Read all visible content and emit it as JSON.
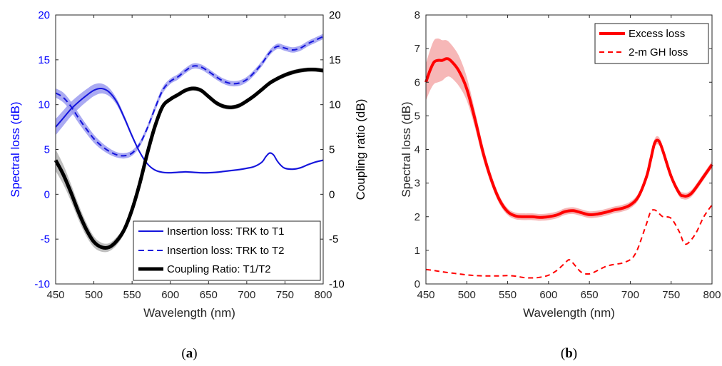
{
  "chart_data": [
    {
      "panel": "a",
      "caption": "(a)",
      "type": "line",
      "xlabel": "Wavelength (nm)",
      "ylabel_left": "Spectral loss (dB)",
      "ylabel_right": "Coupling ratio (dB)",
      "xlim": [
        450,
        800
      ],
      "ylim_left": [
        -10,
        20
      ],
      "ylim_right": [
        -10,
        20
      ],
      "xticks": [
        450,
        500,
        550,
        600,
        650,
        700,
        750,
        800
      ],
      "yticks_left": [
        -10,
        -5,
        0,
        5,
        10,
        15,
        20
      ],
      "yticks_right": [
        -10,
        -5,
        0,
        5,
        10,
        15,
        20
      ],
      "grid": false,
      "legend": "bottom-right",
      "colors": {
        "left_axis": "#0000ff",
        "right_axis": "#000000"
      },
      "series": [
        {
          "name": "Insertion loss: TRK to T1",
          "axis": "left",
          "style": "solid",
          "color": "#1414dc",
          "band_color": "#9b9bf0",
          "x": [
            450,
            460,
            470,
            480,
            490,
            500,
            510,
            520,
            530,
            540,
            550,
            560,
            570,
            580,
            590,
            600,
            610,
            620,
            630,
            640,
            650,
            660,
            670,
            680,
            690,
            700,
            710,
            720,
            725,
            730,
            735,
            740,
            745,
            750,
            760,
            770,
            780,
            790,
            800
          ],
          "y": [
            7.5,
            8.5,
            9.5,
            10.3,
            11,
            11.6,
            11.8,
            11.4,
            10.3,
            8.5,
            6.5,
            4.7,
            3.4,
            2.7,
            2.45,
            2.4,
            2.45,
            2.5,
            2.45,
            2.4,
            2.4,
            2.45,
            2.55,
            2.65,
            2.75,
            2.9,
            3.1,
            3.6,
            4.2,
            4.6,
            4.4,
            3.7,
            3.2,
            2.9,
            2.8,
            2.95,
            3.3,
            3.6,
            3.8
          ],
          "band": [
            0.9,
            0.85,
            0.8,
            0.75,
            0.7,
            0.65,
            0.55,
            0.45,
            0.35,
            0.3,
            0.25,
            0.15,
            0.12,
            0.1,
            0.1,
            0.1,
            0.1,
            0.1,
            0.1,
            0.1,
            0.1,
            0.1,
            0.1,
            0.1,
            0.1,
            0.1,
            0.1,
            0.1,
            0.1,
            0.1,
            0.1,
            0.1,
            0.1,
            0.1,
            0.1,
            0.1,
            0.1,
            0.1,
            0.1
          ]
        },
        {
          "name": "Insertion loss: TRK to T2",
          "axis": "left",
          "style": "dashed",
          "color": "#1414dc",
          "band_color": "#9b9bf0",
          "x": [
            450,
            460,
            470,
            480,
            490,
            500,
            510,
            520,
            530,
            540,
            550,
            560,
            570,
            580,
            590,
            600,
            610,
            620,
            630,
            640,
            650,
            660,
            670,
            680,
            690,
            700,
            710,
            720,
            730,
            740,
            750,
            760,
            770,
            780,
            790,
            800
          ],
          "y": [
            11.3,
            10.8,
            9.8,
            8.5,
            7.3,
            6.2,
            5.4,
            4.8,
            4.4,
            4.3,
            4.6,
            5.6,
            7.4,
            9.6,
            11.6,
            12.6,
            13.1,
            13.8,
            14.3,
            14.2,
            13.7,
            13.1,
            12.6,
            12.35,
            12.4,
            12.8,
            13.6,
            14.6,
            15.8,
            16.5,
            16.3,
            16.1,
            16.3,
            16.8,
            17.2,
            17.6
          ],
          "band": [
            0.5,
            0.55,
            0.55,
            0.55,
            0.5,
            0.45,
            0.4,
            0.35,
            0.3,
            0.3,
            0.3,
            0.3,
            0.3,
            0.35,
            0.35,
            0.3,
            0.3,
            0.3,
            0.3,
            0.3,
            0.3,
            0.3,
            0.3,
            0.3,
            0.3,
            0.3,
            0.3,
            0.3,
            0.3,
            0.3,
            0.3,
            0.3,
            0.3,
            0.3,
            0.3,
            0.3
          ]
        },
        {
          "name": "Coupling Ratio: T1/T2",
          "axis": "right",
          "style": "solid-thick",
          "color": "#000000",
          "band_color": "#b4b4b4",
          "x": [
            450,
            460,
            470,
            480,
            490,
            500,
            510,
            520,
            530,
            540,
            550,
            560,
            570,
            580,
            590,
            600,
            610,
            620,
            630,
            640,
            650,
            660,
            670,
            680,
            690,
            700,
            710,
            720,
            730,
            740,
            750,
            760,
            770,
            780,
            790,
            800
          ],
          "y": [
            3.8,
            2.2,
            0.2,
            -2,
            -3.9,
            -5.3,
            -5.9,
            -5.9,
            -5.2,
            -3.9,
            -1.7,
            1.2,
            4.6,
            7.6,
            9.8,
            10.6,
            11.1,
            11.6,
            11.8,
            11.6,
            10.9,
            10.2,
            9.8,
            9.7,
            9.9,
            10.4,
            11.0,
            11.7,
            12.4,
            12.9,
            13.3,
            13.6,
            13.8,
            13.9,
            13.9,
            13.8
          ],
          "band": [
            1.2,
            1.1,
            0.95,
            0.85,
            0.75,
            0.6,
            0.5,
            0.45,
            0.45,
            0.4,
            0.35,
            0.3,
            0.3,
            0.25,
            0.25,
            0.25,
            0.25,
            0.25,
            0.25,
            0.25,
            0.25,
            0.25,
            0.25,
            0.25,
            0.25,
            0.25,
            0.25,
            0.25,
            0.25,
            0.25,
            0.25,
            0.25,
            0.25,
            0.25,
            0.25,
            0.25
          ]
        }
      ]
    },
    {
      "panel": "b",
      "caption": "(b)",
      "type": "line",
      "xlabel": "Wavelength (nm)",
      "ylabel": "Spectral loss (dB)",
      "xlim": [
        450,
        800
      ],
      "ylim": [
        0,
        8
      ],
      "xticks": [
        450,
        500,
        550,
        600,
        650,
        700,
        750,
        800
      ],
      "yticks": [
        0,
        1,
        2,
        3,
        4,
        5,
        6,
        7,
        8
      ],
      "grid": false,
      "legend": "top-right",
      "series": [
        {
          "name": "Excess loss",
          "style": "solid-thick",
          "color": "#ff0000",
          "band_color": "#f5aaaa",
          "x": [
            450,
            455,
            460,
            465,
            470,
            475,
            480,
            490,
            500,
            510,
            520,
            530,
            540,
            550,
            560,
            570,
            580,
            590,
            600,
            610,
            620,
            630,
            640,
            650,
            660,
            670,
            680,
            690,
            700,
            710,
            720,
            725,
            730,
            735,
            740,
            750,
            760,
            765,
            770,
            775,
            780,
            790,
            800
          ],
          "y": [
            6.0,
            6.35,
            6.6,
            6.65,
            6.65,
            6.7,
            6.65,
            6.35,
            5.8,
            4.9,
            3.9,
            3.1,
            2.5,
            2.15,
            2.02,
            2.0,
            2.0,
            1.98,
            2.0,
            2.05,
            2.15,
            2.18,
            2.12,
            2.06,
            2.08,
            2.13,
            2.2,
            2.25,
            2.35,
            2.6,
            3.2,
            3.7,
            4.2,
            4.25,
            3.95,
            3.2,
            2.7,
            2.62,
            2.62,
            2.7,
            2.85,
            3.2,
            3.55
          ],
          "band": [
            0.55,
            0.6,
            0.65,
            0.65,
            0.6,
            0.55,
            0.5,
            0.45,
            0.35,
            0.25,
            0.2,
            0.15,
            0.12,
            0.1,
            0.1,
            0.1,
            0.1,
            0.1,
            0.1,
            0.1,
            0.1,
            0.1,
            0.1,
            0.1,
            0.1,
            0.1,
            0.1,
            0.1,
            0.1,
            0.1,
            0.1,
            0.1,
            0.12,
            0.12,
            0.12,
            0.1,
            0.1,
            0.1,
            0.1,
            0.1,
            0.1,
            0.1,
            0.1
          ]
        },
        {
          "name": "2-m GH loss",
          "style": "dashed",
          "color": "#ff0000",
          "x": [
            450,
            460,
            470,
            480,
            490,
            500,
            510,
            520,
            530,
            540,
            550,
            560,
            570,
            580,
            590,
            600,
            610,
            620,
            625,
            630,
            640,
            650,
            660,
            670,
            680,
            690,
            700,
            705,
            710,
            720,
            725,
            730,
            735,
            740,
            750,
            760,
            765,
            770,
            780,
            790,
            800
          ],
          "y": [
            0.43,
            0.4,
            0.36,
            0.33,
            0.3,
            0.27,
            0.25,
            0.24,
            0.24,
            0.24,
            0.25,
            0.23,
            0.19,
            0.18,
            0.2,
            0.26,
            0.4,
            0.62,
            0.72,
            0.62,
            0.35,
            0.3,
            0.4,
            0.52,
            0.58,
            0.62,
            0.72,
            0.85,
            1.1,
            1.8,
            2.15,
            2.2,
            2.1,
            2.0,
            1.95,
            1.55,
            1.25,
            1.2,
            1.5,
            2.0,
            2.35
          ]
        }
      ]
    }
  ]
}
